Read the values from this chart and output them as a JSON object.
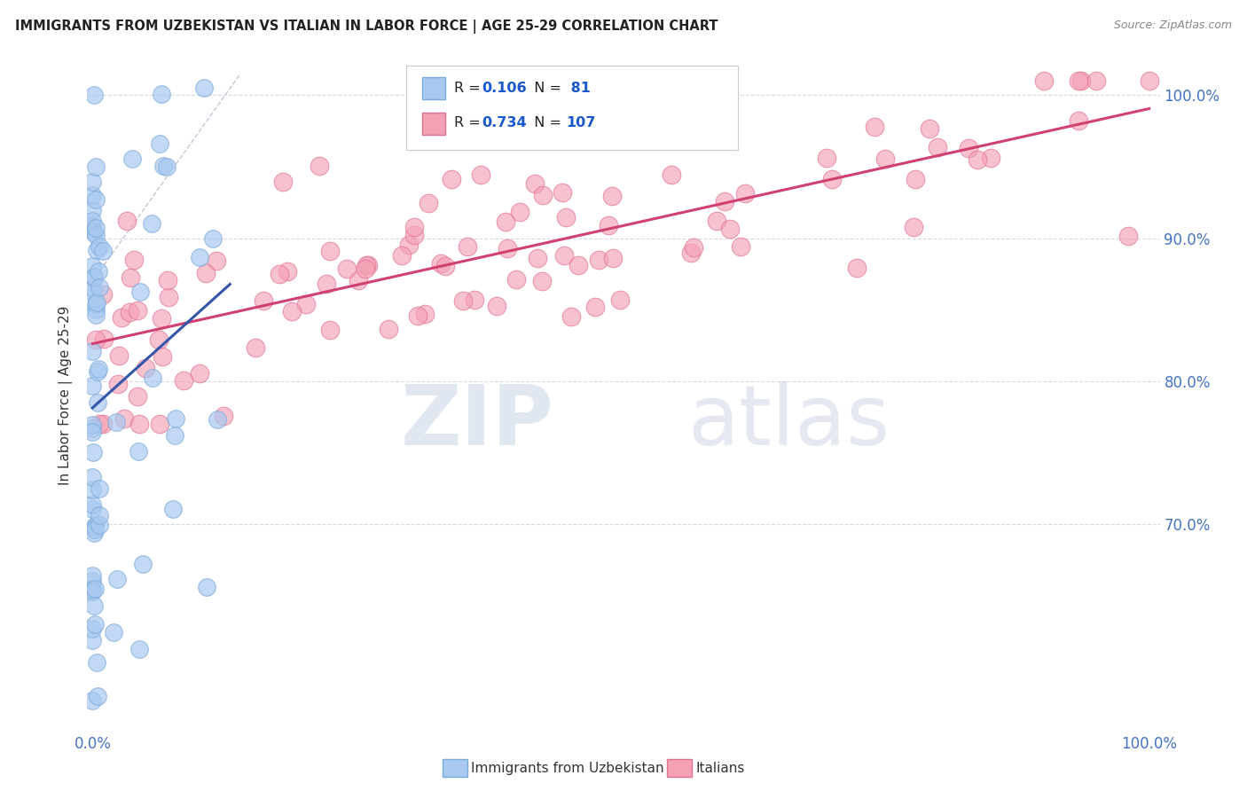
{
  "title": "IMMIGRANTS FROM UZBEKISTAN VS ITALIAN IN LABOR FORCE | AGE 25-29 CORRELATION CHART",
  "source": "Source: ZipAtlas.com",
  "ylabel": "In Labor Force | Age 25-29",
  "watermark_zip": "ZIP",
  "watermark_atlas": "atlas",
  "uzbek_R": 0.106,
  "uzbek_N": 81,
  "italian_R": 0.734,
  "italian_N": 107,
  "color_uzbek": "#a8c8f0",
  "color_uzbek_edge": "#7aaada",
  "color_italian": "#f4a0b5",
  "color_italian_edge": "#e07090",
  "color_uzbek_line": "#3355aa",
  "color_italian_line": "#d04070",
  "color_diagonal": "#b8b8cc",
  "background": "#ffffff",
  "title_color": "#222222",
  "axis_tick_color": "#4472c4",
  "legend_val_color": "#1a56cc",
  "ytick_vals": [
    0.7,
    0.8,
    0.9,
    1.0
  ],
  "ytick_labels": [
    "70.0%",
    "80.0%",
    "90.0%",
    "100.0%"
  ],
  "ylim": [
    0.555,
    1.025
  ],
  "xlim": [
    -0.005,
    1.01
  ]
}
